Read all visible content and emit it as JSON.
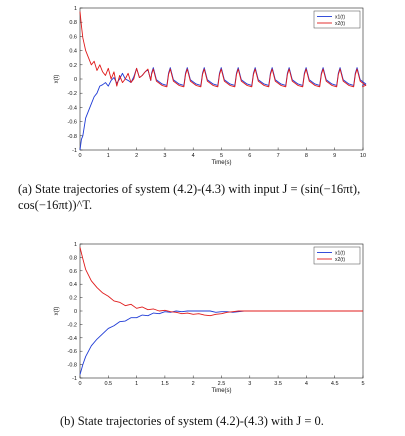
{
  "chart_data": [
    {
      "type": "line",
      "caption": "(a) State trajectories of system (4.2)-(4.3) with input J = (sin(−16πt), cos(−16πt))^T.",
      "xlabel": "Time(s)",
      "ylabel": "x(t)",
      "xlim": [
        0,
        10
      ],
      "ylim": [
        -1,
        1
      ],
      "xticks": [
        "0",
        "1",
        "2",
        "3",
        "4",
        "5",
        "6",
        "7",
        "8",
        "9",
        "10"
      ],
      "yticks": [
        "1",
        "0.8",
        "0.6",
        "0.4",
        "0.2",
        "0",
        "-0.2",
        "-0.4",
        "-0.6",
        "-0.8",
        "-1"
      ],
      "grid": false,
      "legend_position": "top-right",
      "series": [
        {
          "name": "x1(t)",
          "color": "#1f3bd6",
          "x": [
            0.0,
            0.05,
            0.1,
            0.2,
            0.3,
            0.4,
            0.5,
            0.6,
            0.7,
            0.8,
            0.9,
            1.0,
            1.1,
            1.2,
            1.3,
            1.4,
            1.5,
            1.6,
            1.7,
            1.8,
            1.9,
            2.0,
            2.1,
            2.2,
            2.3,
            2.4,
            2.5
          ],
          "y": [
            -1.0,
            -0.85,
            -0.8,
            -0.55,
            -0.45,
            -0.35,
            -0.25,
            -0.2,
            -0.1,
            -0.08,
            -0.05,
            -0.1,
            -0.02,
            0.02,
            -0.06,
            0.0,
            0.08,
            0.0,
            -0.02,
            -0.05,
            0.03,
            0.15,
            0.02,
            0.05,
            0.1,
            0.13,
            -0.02
          ]
        },
        {
          "name": "x2(t)",
          "color": "#e01b1b",
          "x": [
            0.0,
            0.05,
            0.1,
            0.2,
            0.3,
            0.4,
            0.5,
            0.6,
            0.7,
            0.8,
            0.9,
            1.0,
            1.1,
            1.2,
            1.3,
            1.4,
            1.5,
            1.6,
            1.7,
            1.8,
            1.9,
            2.0,
            2.1,
            2.2,
            2.3,
            2.4,
            2.5
          ],
          "y": [
            0.95,
            0.75,
            0.58,
            0.4,
            0.3,
            0.2,
            0.25,
            0.12,
            0.2,
            0.1,
            0.05,
            0.15,
            0.0,
            0.1,
            -0.1,
            0.05,
            -0.05,
            0.0,
            0.08,
            -0.05,
            0.0,
            0.15,
            0.02,
            0.05,
            0.1,
            0.14,
            -0.02
          ]
        }
      ],
      "combined_oscillation": {
        "x_start": 2.5,
        "x_end": 10,
        "period": 0.6,
        "peak": 0.15,
        "trough": -0.1
      }
    },
    {
      "type": "line",
      "caption": "(b) State trajectories of system (4.2)-(4.3) with J = 0.",
      "xlabel": "Time(s)",
      "ylabel": "x(t)",
      "xlim": [
        0,
        5
      ],
      "ylim": [
        -1,
        1
      ],
      "xticks": [
        "0",
        "0.5",
        "1",
        "1.5",
        "2",
        "2.5",
        "3",
        "3.5",
        "4",
        "4.5",
        "5"
      ],
      "yticks": [
        "1",
        "0.8",
        "0.6",
        "0.4",
        "0.2",
        "0",
        "-0.2",
        "-0.4",
        "-0.6",
        "-0.8",
        "-1"
      ],
      "grid": false,
      "legend_position": "top-right",
      "series": [
        {
          "name": "x1(t)",
          "color": "#1f3bd6",
          "x": [
            0.0,
            0.05,
            0.1,
            0.2,
            0.3,
            0.4,
            0.5,
            0.6,
            0.7,
            0.8,
            0.9,
            1.0,
            1.1,
            1.2,
            1.3,
            1.4,
            1.5,
            1.6,
            1.7,
            1.8,
            1.9,
            2.0,
            2.1,
            2.2,
            2.3,
            2.4,
            2.5,
            2.6,
            2.7,
            2.8,
            2.9,
            3.0,
            3.5,
            4.0,
            4.5,
            5.0
          ],
          "y": [
            -0.95,
            -0.8,
            -0.68,
            -0.52,
            -0.42,
            -0.34,
            -0.26,
            -0.22,
            -0.16,
            -0.15,
            -0.1,
            -0.1,
            -0.06,
            -0.07,
            -0.03,
            -0.04,
            -0.01,
            -0.02,
            0.0,
            -0.01,
            0.0,
            0.0,
            0.0,
            0.0,
            0.0,
            -0.02,
            -0.01,
            -0.01,
            -0.02,
            -0.01,
            0.0,
            0.0,
            0.0,
            0.0,
            0.0,
            0.0
          ]
        },
        {
          "name": "x2(t)",
          "color": "#e01b1b",
          "x": [
            0.0,
            0.05,
            0.1,
            0.2,
            0.3,
            0.4,
            0.5,
            0.6,
            0.7,
            0.8,
            0.9,
            1.0,
            1.1,
            1.2,
            1.3,
            1.4,
            1.5,
            1.6,
            1.7,
            1.8,
            1.9,
            2.0,
            2.1,
            2.2,
            2.3,
            2.4,
            2.5,
            2.6,
            2.7,
            2.8,
            2.9,
            3.0,
            3.5,
            4.0,
            4.5,
            5.0
          ],
          "y": [
            0.95,
            0.78,
            0.62,
            0.45,
            0.35,
            0.27,
            0.22,
            0.15,
            0.13,
            0.08,
            0.1,
            0.04,
            0.06,
            0.02,
            0.03,
            0.0,
            0.01,
            -0.01,
            -0.02,
            -0.04,
            -0.03,
            -0.05,
            -0.04,
            -0.06,
            -0.07,
            -0.05,
            -0.04,
            -0.02,
            -0.01,
            0.0,
            0.0,
            0.0,
            0.0,
            0.0,
            0.0,
            0.0
          ]
        }
      ]
    }
  ]
}
